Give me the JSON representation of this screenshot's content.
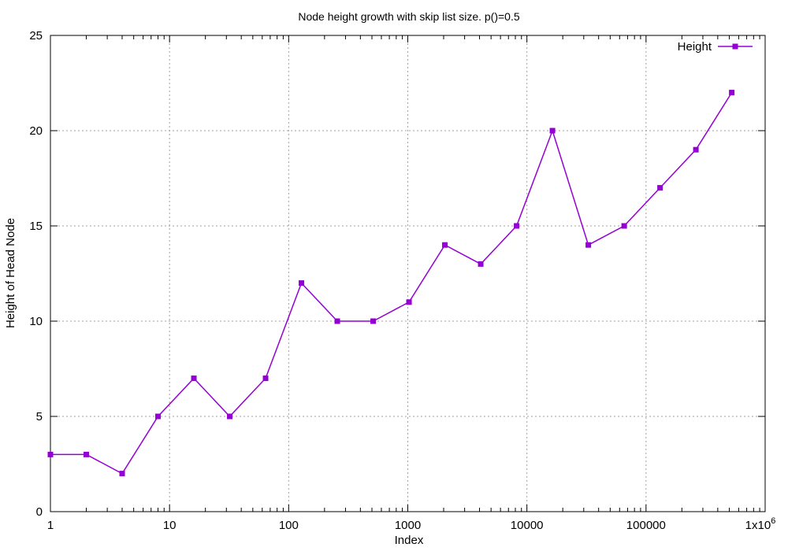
{
  "chart_data": {
    "type": "line",
    "title": "Node height growth with skip list size. p()=0.5",
    "xlabel": "Index",
    "ylabel": "Height of Head Node",
    "x_scale": "log10",
    "xlim": [
      1,
      1000000
    ],
    "ylim": [
      0,
      25
    ],
    "x_tick_values": [
      1,
      10,
      100,
      1000,
      10000,
      100000,
      1000000
    ],
    "x_tick_labels": [
      "1",
      "10",
      "100",
      "1000",
      "10000",
      "100000",
      "1x10"
    ],
    "x_last_tick_superscript": "6",
    "y_tick_values": [
      0,
      5,
      10,
      15,
      20,
      25
    ],
    "y_tick_labels": [
      "0",
      "5",
      "10",
      "15",
      "20",
      "25"
    ],
    "grid": true,
    "legend_position": "top-right",
    "series": [
      {
        "name": "Height",
        "color": "#9400d3",
        "marker": "square",
        "x": [
          1,
          2,
          4,
          8,
          16,
          32,
          64,
          128,
          256,
          512,
          1024,
          2048,
          4096,
          8192,
          16384,
          32768,
          65536,
          131072,
          262144,
          524288
        ],
        "y": [
          3,
          3,
          2,
          5,
          7,
          5,
          7,
          12,
          10,
          10,
          11,
          14,
          13,
          15,
          20,
          14,
          15,
          17,
          19,
          22
        ]
      }
    ]
  }
}
